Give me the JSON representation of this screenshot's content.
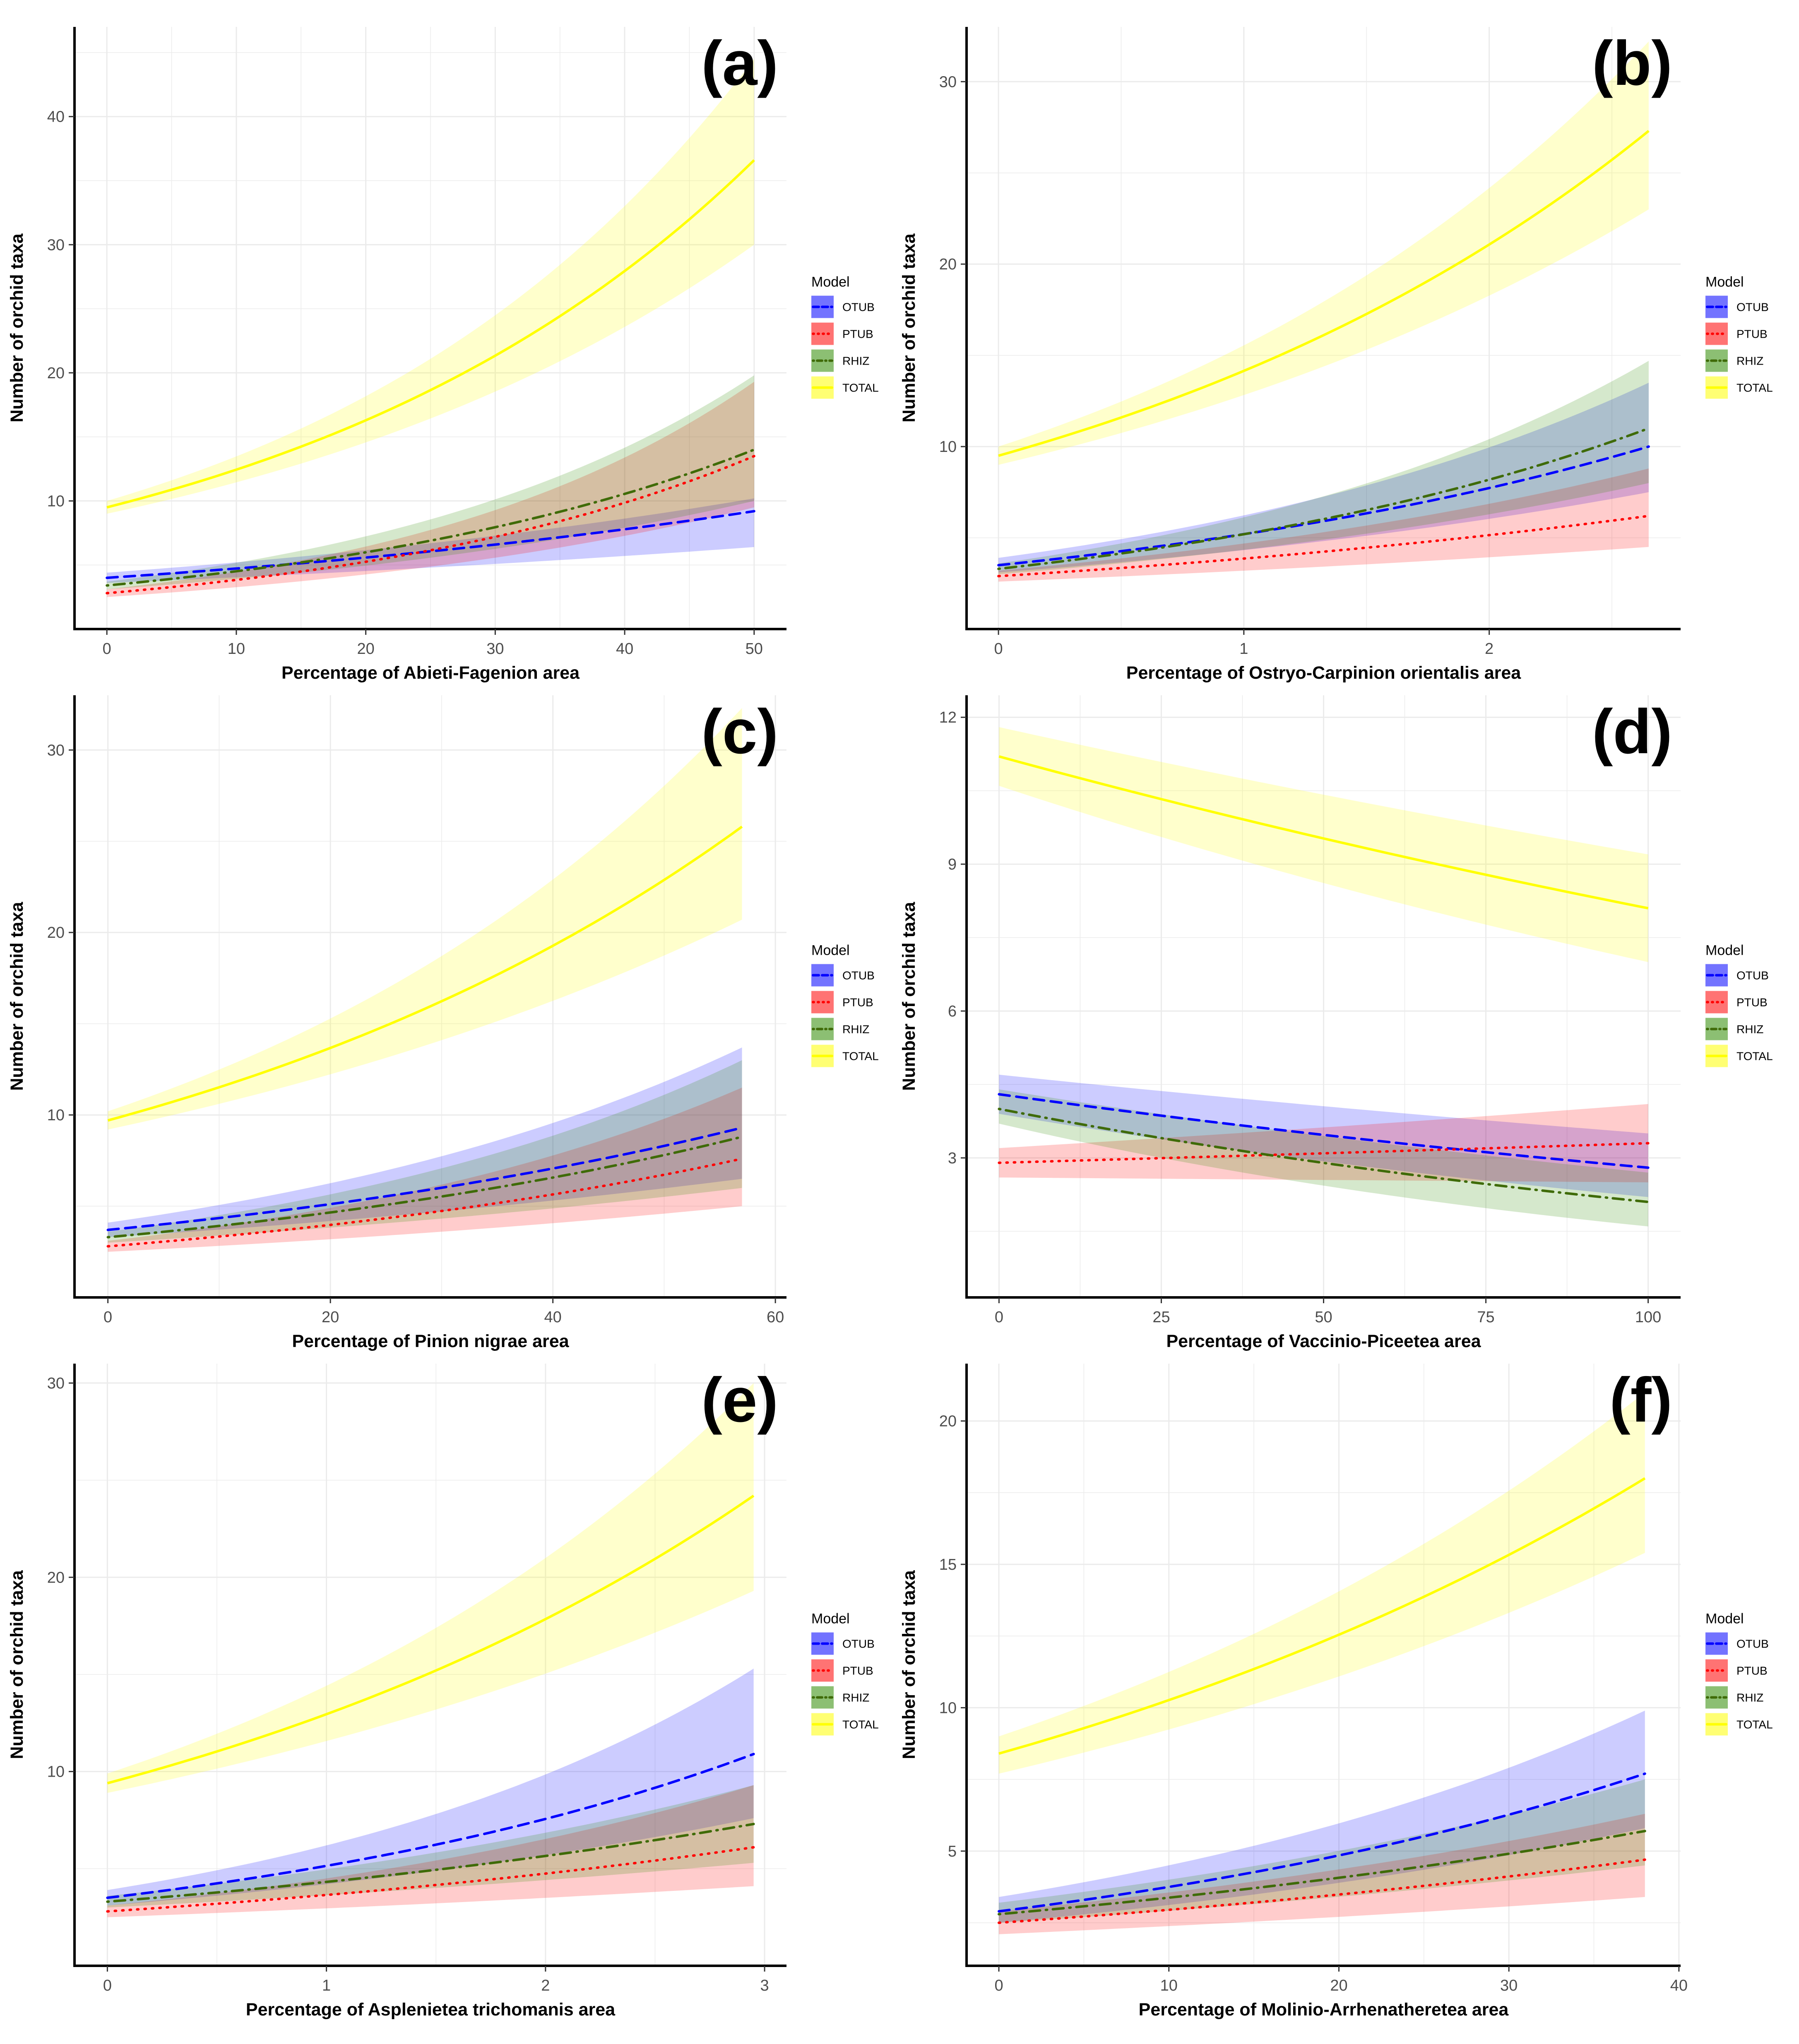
{
  "figure": {
    "y_axis_label": "Number of orchid taxa",
    "legend": {
      "title": "Model",
      "entries": [
        {
          "name": "OTUB",
          "color": "#0000ff",
          "fill": "#0000ff",
          "dash": "dashed"
        },
        {
          "name": "PTUB",
          "color": "#ff0000",
          "fill": "#ff0000",
          "dash": "dotted"
        },
        {
          "name": "RHIZ",
          "color": "#3f6b08",
          "fill": "#2e8b00",
          "dash": "dotdash"
        },
        {
          "name": "TOTAL",
          "color": "#ffff00",
          "fill": "#ffff00",
          "dash": "solid"
        }
      ]
    }
  },
  "chart_data": [
    {
      "type": "line",
      "panel_label": "(a)",
      "xlabel": "Percentage of Abieti-Fagenion area",
      "ylabel": "Number of orchid taxa",
      "xlim": [
        -2.5,
        52.5
      ],
      "ylim": [
        0,
        47
      ],
      "xticks": [
        0,
        10,
        20,
        30,
        40,
        50
      ],
      "yticks": [
        10,
        20,
        30,
        40
      ],
      "x": [
        0,
        50
      ],
      "series": [
        {
          "name": "OTUB",
          "start": 4.0,
          "end": 9.2,
          "lower": [
            3.6,
            6.4
          ],
          "upper": [
            4.4,
            10.2
          ]
        },
        {
          "name": "PTUB",
          "start": 2.8,
          "end": 13.5,
          "lower": [
            2.5,
            9.5
          ],
          "upper": [
            3.1,
            19.3
          ]
        },
        {
          "name": "RHIZ",
          "start": 3.4,
          "end": 14.0,
          "lower": [
            3.1,
            10.0
          ],
          "upper": [
            3.7,
            19.8
          ]
        },
        {
          "name": "TOTAL",
          "start": 9.5,
          "end": 36.6,
          "lower": [
            9.0,
            30.0
          ],
          "upper": [
            10.0,
            44.5
          ]
        }
      ]
    },
    {
      "type": "line",
      "panel_label": "(b)",
      "xlabel": "Percentage of Ostryo-Carpinion orientalis area",
      "ylabel": "Number of orchid taxa",
      "xlim": [
        -0.13,
        2.78
      ],
      "ylim": [
        0,
        33
      ],
      "xticks": [
        0,
        1,
        2
      ],
      "yticks": [
        10,
        20,
        30
      ],
      "x": [
        0,
        2.65
      ],
      "series": [
        {
          "name": "OTUB",
          "start": 3.5,
          "end": 10.0,
          "lower": [
            3.1,
            7.5
          ],
          "upper": [
            3.9,
            13.5
          ]
        },
        {
          "name": "PTUB",
          "start": 2.9,
          "end": 6.2,
          "lower": [
            2.6,
            4.5
          ],
          "upper": [
            3.2,
            8.8
          ]
        },
        {
          "name": "RHIZ",
          "start": 3.3,
          "end": 11.0,
          "lower": [
            3.0,
            8.0
          ],
          "upper": [
            3.6,
            14.7
          ]
        },
        {
          "name": "TOTAL",
          "start": 9.5,
          "end": 27.3,
          "lower": [
            9.0,
            23.0
          ],
          "upper": [
            10.0,
            32.2
          ]
        }
      ]
    },
    {
      "type": "line",
      "panel_label": "(c)",
      "xlabel": "Percentage of Pinion nigrae area",
      "ylabel": "Number of orchid taxa",
      "xlim": [
        -3.0,
        61.0
      ],
      "ylim": [
        0,
        33
      ],
      "xticks": [
        0,
        20,
        40,
        60
      ],
      "yticks": [
        10,
        20,
        30
      ],
      "x": [
        0,
        57
      ],
      "series": [
        {
          "name": "OTUB",
          "start": 3.7,
          "end": 9.3,
          "lower": [
            3.3,
            6.5
          ],
          "upper": [
            4.1,
            13.7
          ]
        },
        {
          "name": "PTUB",
          "start": 2.8,
          "end": 7.6,
          "lower": [
            2.5,
            5.0
          ],
          "upper": [
            3.1,
            11.5
          ]
        },
        {
          "name": "RHIZ",
          "start": 3.3,
          "end": 8.8,
          "lower": [
            3.0,
            6.0
          ],
          "upper": [
            3.6,
            13.0
          ]
        },
        {
          "name": "TOTAL",
          "start": 9.7,
          "end": 25.8,
          "lower": [
            9.2,
            20.7
          ],
          "upper": [
            10.2,
            32.3
          ]
        }
      ]
    },
    {
      "type": "line",
      "panel_label": "(d)",
      "xlabel": "Percentage of Vaccinio-Piceetea area",
      "ylabel": "Number of orchid taxa",
      "xlim": [
        -5,
        105
      ],
      "ylim": [
        0.15,
        12.45
      ],
      "xticks": [
        0,
        25,
        50,
        75,
        100
      ],
      "yticks": [
        3,
        6,
        9,
        12
      ],
      "x": [
        0,
        100
      ],
      "series": [
        {
          "name": "OTUB",
          "start": 4.3,
          "end": 2.8,
          "lower": [
            3.9,
            2.2
          ],
          "upper": [
            4.7,
            3.5
          ]
        },
        {
          "name": "PTUB",
          "start": 2.9,
          "end": 3.3,
          "lower": [
            2.6,
            2.5
          ],
          "upper": [
            3.2,
            4.1
          ]
        },
        {
          "name": "RHIZ",
          "start": 4.0,
          "end": 2.1,
          "lower": [
            3.7,
            1.6
          ],
          "upper": [
            4.4,
            2.7
          ]
        },
        {
          "name": "TOTAL",
          "start": 11.2,
          "end": 8.1,
          "lower": [
            10.6,
            7.0
          ],
          "upper": [
            11.8,
            9.2
          ]
        }
      ]
    },
    {
      "type": "line",
      "panel_label": "(e)",
      "xlabel": "Percentage of Asplenietea trichomanis area",
      "ylabel": "Number of orchid taxa",
      "xlim": [
        -0.15,
        3.1
      ],
      "ylim": [
        0,
        31
      ],
      "xticks": [
        0,
        1,
        2,
        3
      ],
      "yticks": [
        10,
        20,
        30
      ],
      "x": [
        0,
        2.95
      ],
      "series": [
        {
          "name": "OTUB",
          "start": 3.5,
          "end": 10.9,
          "lower": [
            3.1,
            7.6
          ],
          "upper": [
            3.9,
            15.3
          ]
        },
        {
          "name": "PTUB",
          "start": 2.8,
          "end": 6.1,
          "lower": [
            2.5,
            4.1
          ],
          "upper": [
            3.1,
            9.3
          ]
        },
        {
          "name": "RHIZ",
          "start": 3.3,
          "end": 7.3,
          "lower": [
            3.0,
            5.3
          ],
          "upper": [
            3.6,
            9.3
          ]
        },
        {
          "name": "TOTAL",
          "start": 9.4,
          "end": 24.2,
          "lower": [
            8.9,
            19.3
          ],
          "upper": [
            9.9,
            30.0
          ]
        }
      ]
    },
    {
      "type": "line",
      "panel_label": "(f)",
      "xlabel": "Percentage of Molinio-Arrhenatheretea area",
      "ylabel": "Number of orchid taxa",
      "xlim": [
        -1.9,
        40.1
      ],
      "ylim": [
        1.0,
        22.0
      ],
      "xticks": [
        0,
        10,
        20,
        30,
        40
      ],
      "yticks": [
        5,
        10,
        15,
        20
      ],
      "x": [
        0,
        38
      ],
      "series": [
        {
          "name": "OTUB",
          "start": 2.9,
          "end": 7.7,
          "lower": [
            2.5,
            5.8
          ],
          "upper": [
            3.4,
            9.9
          ]
        },
        {
          "name": "PTUB",
          "start": 2.5,
          "end": 4.7,
          "lower": [
            2.1,
            3.4
          ],
          "upper": [
            2.9,
            6.3
          ]
        },
        {
          "name": "RHIZ",
          "start": 2.8,
          "end": 5.7,
          "lower": [
            2.5,
            4.5
          ],
          "upper": [
            3.2,
            7.5
          ]
        },
        {
          "name": "TOTAL",
          "start": 8.4,
          "end": 18.0,
          "lower": [
            7.7,
            15.4
          ],
          "upper": [
            9.0,
            21.0
          ]
        }
      ]
    }
  ]
}
